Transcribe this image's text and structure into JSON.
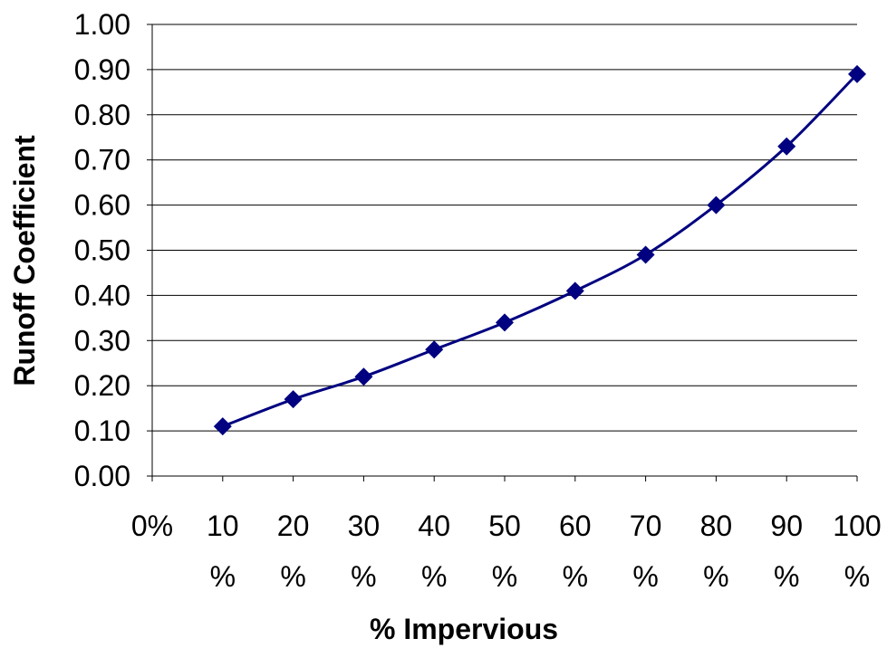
{
  "chart_data": {
    "type": "line",
    "xlabel": "% Impervious",
    "ylabel": "Runoff Coefficient",
    "categories": [
      "0%",
      "10%",
      "20%",
      "30%",
      "40%",
      "50%",
      "60%",
      "70%",
      "80%",
      "90%",
      "100%"
    ],
    "x_tick_labels": [
      {
        "line1": "0%",
        "line2": ""
      },
      {
        "line1": "10",
        "line2": "%"
      },
      {
        "line1": "20",
        "line2": "%"
      },
      {
        "line1": "30",
        "line2": "%"
      },
      {
        "line1": "40",
        "line2": "%"
      },
      {
        "line1": "50",
        "line2": "%"
      },
      {
        "line1": "60",
        "line2": "%"
      },
      {
        "line1": "70",
        "line2": "%"
      },
      {
        "line1": "80",
        "line2": "%"
      },
      {
        "line1": "90",
        "line2": "%"
      },
      {
        "line1": "100",
        "line2": "%"
      }
    ],
    "y_ticks": [
      "0.00",
      "0.10",
      "0.20",
      "0.30",
      "0.40",
      "0.50",
      "0.60",
      "0.70",
      "0.80",
      "0.90",
      "1.00"
    ],
    "ylim": [
      0,
      1
    ],
    "grid": true,
    "series": [
      {
        "x": [
          "10%",
          "20%",
          "30%",
          "40%",
          "50%",
          "60%",
          "70%",
          "80%",
          "90%",
          "100%"
        ],
        "values": [
          0.11,
          0.17,
          0.22,
          0.28,
          0.34,
          0.41,
          0.49,
          0.6,
          0.73,
          0.89
        ],
        "color": "#000080",
        "marker": "diamond"
      }
    ]
  }
}
